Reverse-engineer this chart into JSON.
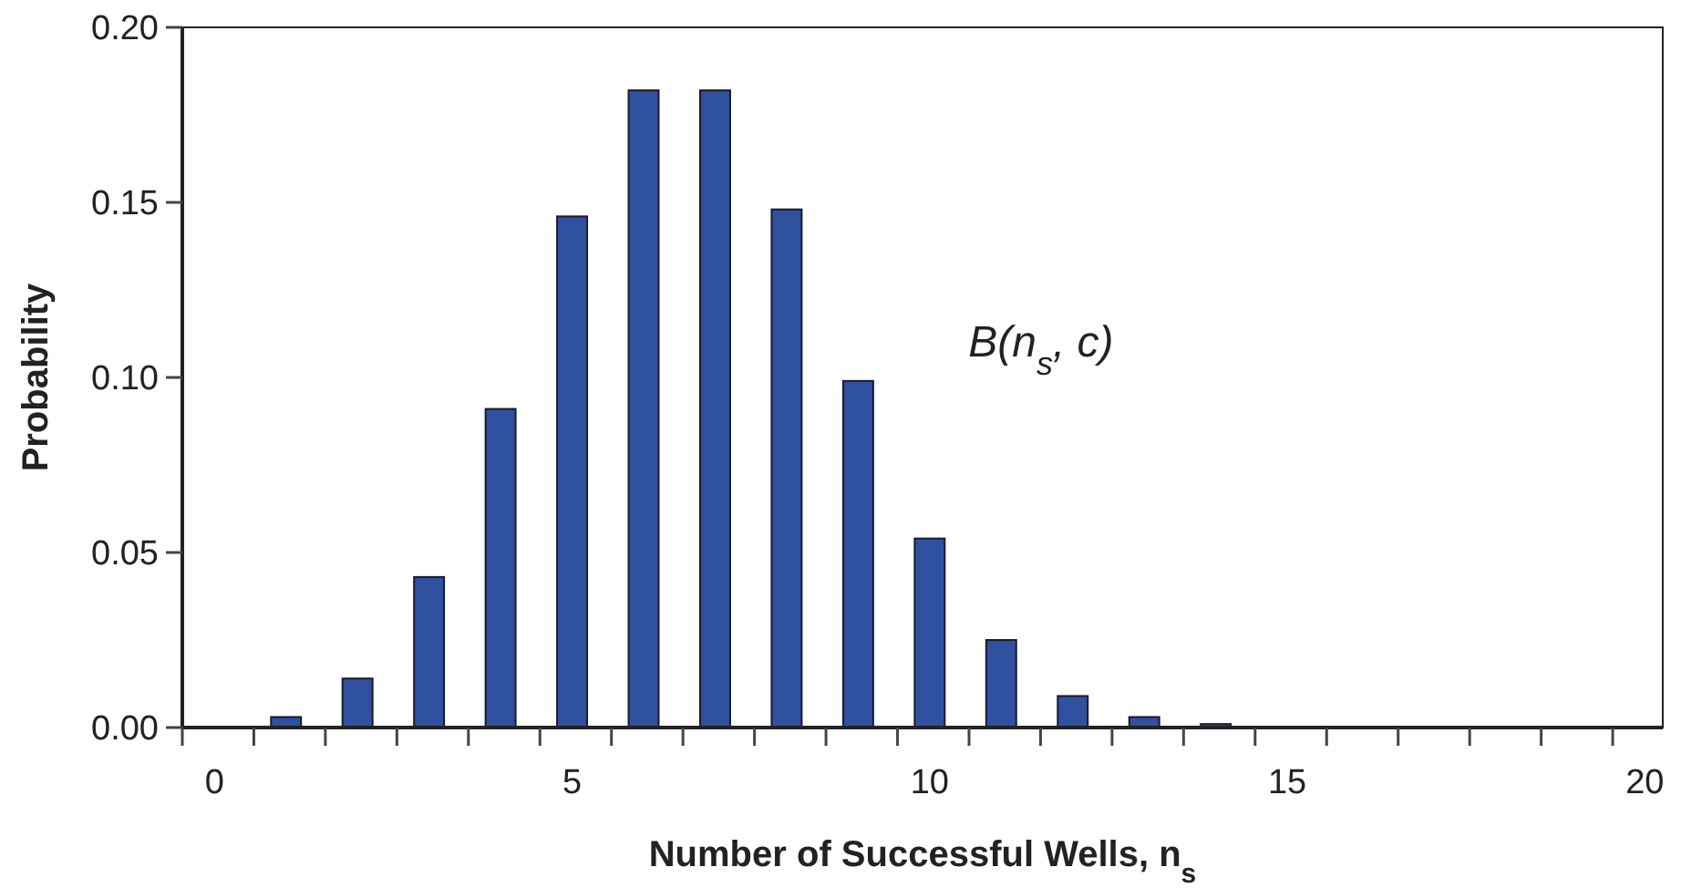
{
  "chart_data": {
    "type": "bar",
    "xlabel": "Number of Successful Wells, n$_{s}$",
    "ylabel": "Probability",
    "x": [
      0,
      1,
      2,
      3,
      4,
      5,
      6,
      7,
      8,
      9,
      10,
      11,
      12,
      13,
      14,
      15,
      16,
      17,
      18,
      19,
      20
    ],
    "values": [
      0,
      0.003,
      0.014,
      0.043,
      0.091,
      0.146,
      0.182,
      0.182,
      0.148,
      0.099,
      0.054,
      0.025,
      0.009,
      0.003,
      0.001,
      0,
      0,
      0,
      0,
      0,
      0
    ],
    "color": "#3050a0",
    "xlim": [
      -0.45,
      20.25
    ],
    "xticks": [
      0,
      5,
      10,
      15,
      20,
      {
        "value": -0.45,
        "label": null
      },
      {
        "value": 0.55,
        "label": null
      },
      {
        "value": 1.55,
        "label": null
      },
      {
        "value": 2.55,
        "label": null
      },
      {
        "value": 3.55,
        "label": null
      },
      {
        "value": 4.55,
        "label": null
      },
      {
        "value": 5.55,
        "label": null
      },
      {
        "value": 6.55,
        "label": null
      },
      {
        "value": 7.55,
        "label": null
      },
      {
        "value": 8.55,
        "label": null
      },
      {
        "value": 9.55,
        "label": null
      },
      {
        "value": 10.55,
        "label": null
      },
      {
        "value": 11.55,
        "label": null
      },
      {
        "value": 12.55,
        "label": null
      },
      {
        "value": 13.55,
        "label": null
      },
      {
        "value": 14.55,
        "label": null
      },
      {
        "value": 15.55,
        "label": null
      },
      {
        "value": 16.55,
        "label": null
      },
      {
        "value": 17.55,
        "label": null
      },
      {
        "value": 18.55,
        "label": null
      },
      {
        "value": 19.55,
        "label": null
      }
    ],
    "ylim": [
      0,
      0.2
    ],
    "yticks": [
      {
        "value": 0,
        "label": "0.00"
      },
      {
        "value": 0.05,
        "label": "0.05"
      },
      {
        "value": 0.1,
        "label": "0.10"
      },
      {
        "value": 0.15,
        "label": "0.15"
      },
      {
        "value": 0.2,
        "label": "0.20"
      }
    ],
    "annotations": [
      "B(n$_{s}$, c)"
    ],
    "grid": false
  }
}
